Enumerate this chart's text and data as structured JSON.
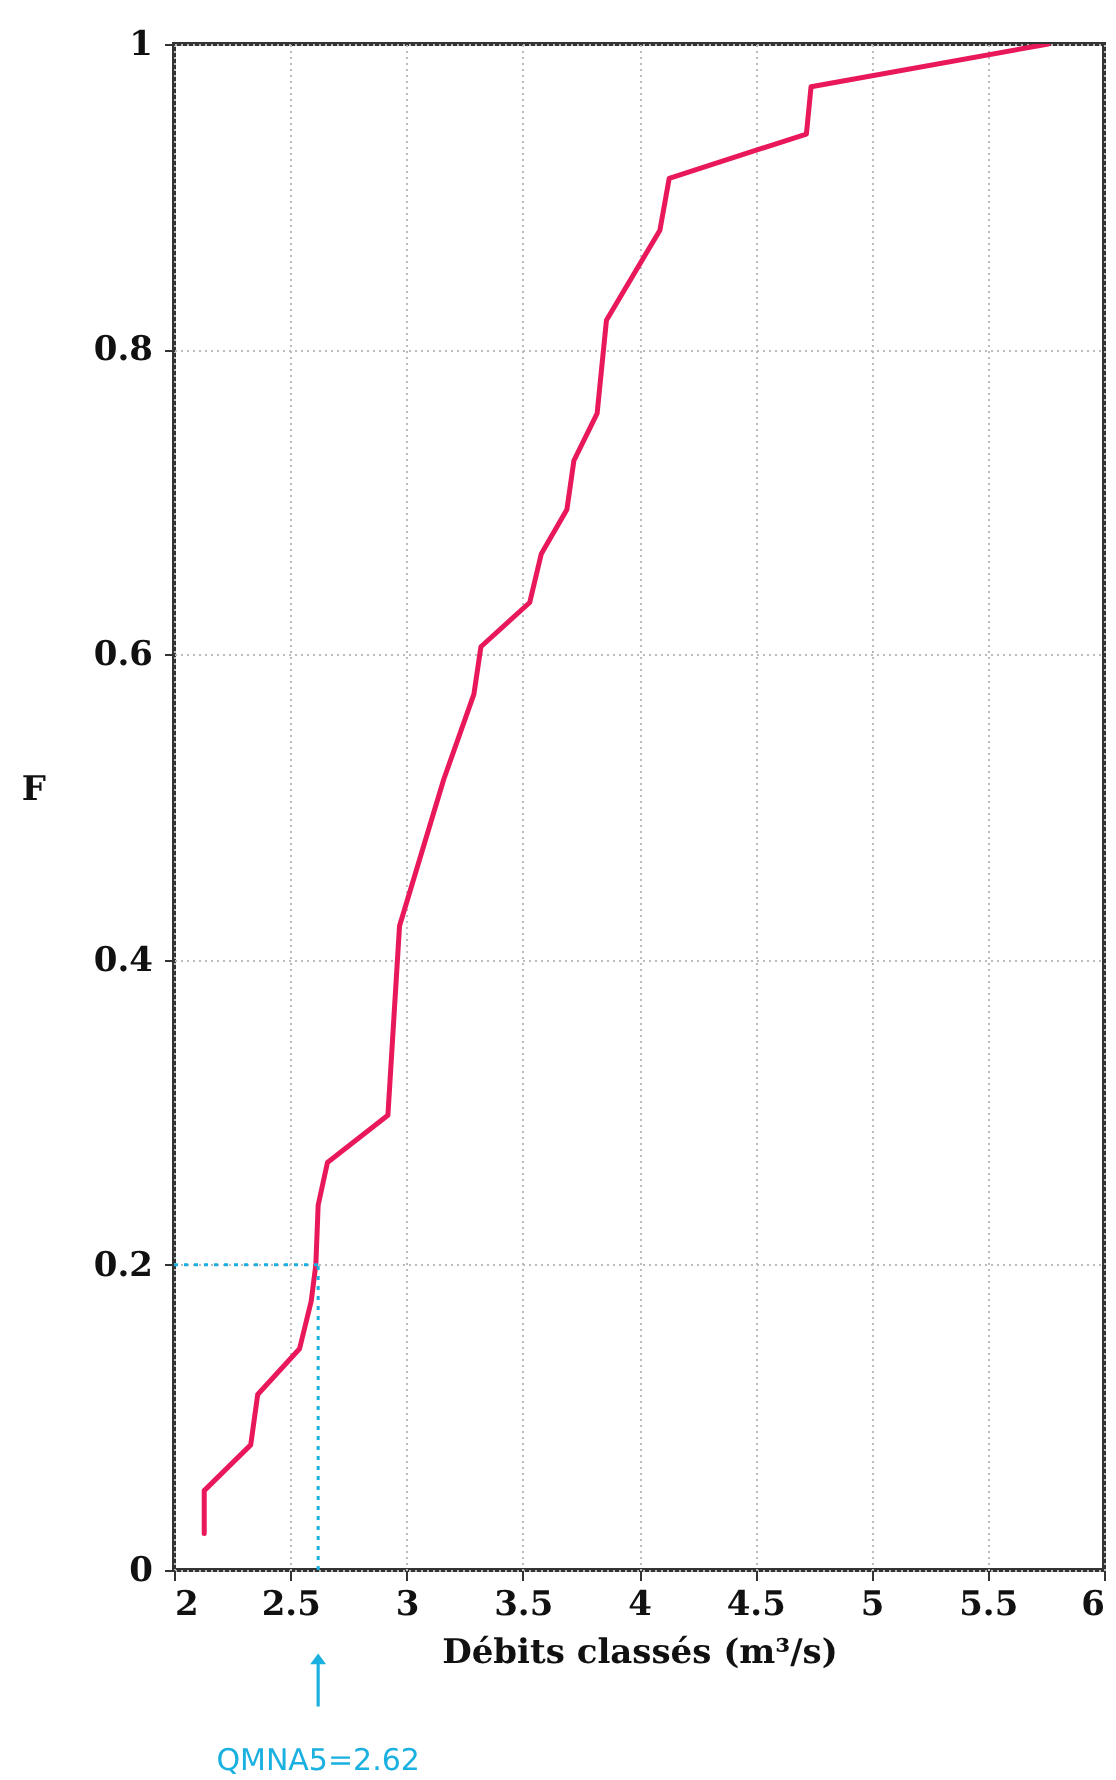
{
  "chart_data": {
    "type": "line",
    "xlabel": "Débits classés (m³/s)",
    "ylabel": "F",
    "x": [
      2.13,
      2.13,
      2.33,
      2.36,
      2.54,
      2.59,
      2.61,
      2.62,
      2.66,
      2.92,
      2.97,
      3.16,
      3.29,
      3.32,
      3.53,
      3.58,
      3.69,
      3.72,
      3.82,
      3.86,
      4.09,
      4.13,
      4.72,
      4.74,
      5.76
    ],
    "series": [
      {
        "color": "#e8185a",
        "values": [
          0.024,
          0.052,
          0.082,
          0.115,
          0.145,
          0.176,
          0.2,
          0.239,
          0.267,
          0.298,
          0.422,
          0.518,
          0.574,
          0.605,
          0.634,
          0.666,
          0.695,
          0.727,
          0.758,
          0.819,
          0.878,
          0.912,
          0.941,
          0.972,
          1
        ]
      }
    ],
    "xlim": [
      2,
      6
    ],
    "ylim": [
      0,
      1
    ],
    "xticks": [
      2,
      2.5,
      3,
      3.5,
      4,
      4.5,
      5,
      5.5,
      6
    ],
    "yticks": [
      0,
      0.2,
      0.4,
      0.6,
      0.8,
      1
    ],
    "grid": true,
    "line_style": "solid",
    "marker": "none",
    "ref_lines": [
      {
        "axis": "y",
        "value": 0.2,
        "color": "#1ab0e0",
        "line_style": "dotted"
      },
      {
        "axis": "x",
        "value": 2.62,
        "color": "#1ab0e0",
        "line_style": "dotted"
      }
    ],
    "annotations": [
      "QMNA5=2.62"
    ]
  }
}
